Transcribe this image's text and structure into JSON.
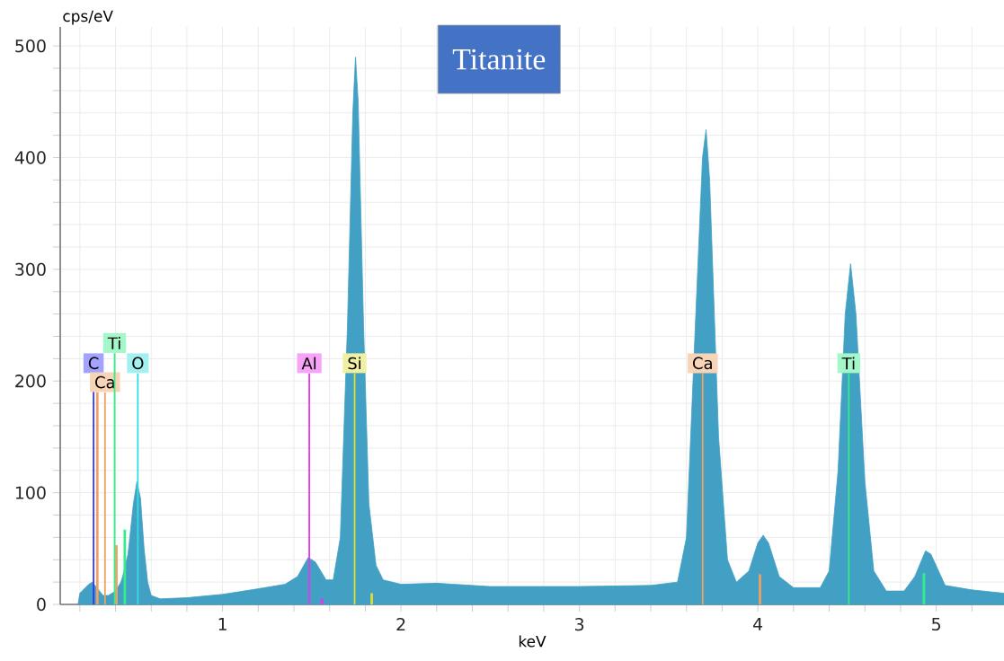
{
  "chart_data": {
    "type": "area",
    "title": "Titanite",
    "xlabel": "keV",
    "ylabel": "cps/eV",
    "x": [
      0.19,
      0.2,
      0.25,
      0.27,
      0.3,
      0.33,
      0.36,
      0.4,
      0.43,
      0.44,
      0.47,
      0.5,
      0.52,
      0.54,
      0.56,
      0.58,
      0.6,
      0.65,
      0.8,
      1.0,
      1.2,
      1.35,
      1.42,
      1.48,
      1.52,
      1.58,
      1.62,
      1.66,
      1.7,
      1.73,
      1.745,
      1.76,
      1.79,
      1.82,
      1.86,
      1.9,
      2.0,
      2.2,
      2.5,
      3.0,
      3.4,
      3.55,
      3.6,
      3.65,
      3.69,
      3.71,
      3.73,
      3.78,
      3.83,
      3.88,
      3.95,
      4.0,
      4.03,
      4.06,
      4.12,
      4.2,
      4.35,
      4.4,
      4.45,
      4.49,
      4.52,
      4.55,
      4.6,
      4.65,
      4.72,
      4.82,
      4.88,
      4.94,
      4.97,
      5.05,
      5.2,
      5.38
    ],
    "series": [
      {
        "type": "bar",
        "x": [
          0.298,
          0.405,
          0.452,
          1.557,
          1.836,
          4.012,
          4.931
        ],
        "values": [
          190,
          53,
          67,
          5,
          10,
          27,
          28
        ],
        "colors": [
          "#f0a060",
          "#f0a060",
          "#33ee88",
          "#ee33ee",
          "#dddd33",
          "#f0a060",
          "#33ee88"
        ]
      },
      {
        "color": "#42a0c4",
        "values": [
          0,
          10,
          18,
          20,
          14,
          8,
          8,
          12,
          20,
          25,
          45,
          90,
          110,
          95,
          50,
          20,
          8,
          5,
          6,
          9,
          14,
          18,
          25,
          42,
          38,
          22,
          22,
          60,
          250,
          440,
          490,
          450,
          250,
          90,
          35,
          22,
          18,
          19,
          16,
          16,
          17,
          20,
          60,
          250,
          400,
          425,
          380,
          150,
          40,
          20,
          30,
          55,
          62,
          55,
          25,
          15,
          15,
          30,
          120,
          260,
          305,
          260,
          110,
          30,
          12,
          12,
          25,
          48,
          45,
          17,
          13,
          10
        ]
      }
    ],
    "xlim": [
      0.09,
      5.38
    ],
    "ylim": [
      0,
      517
    ],
    "xticks": [
      {
        "value": 0.2,
        "label": null
      },
      {
        "value": 0.4,
        "label": null
      },
      {
        "value": 0.6,
        "label": null
      },
      {
        "value": 0.8,
        "label": null
      },
      1,
      {
        "value": 1.2,
        "label": null
      },
      {
        "value": 1.4,
        "label": null
      },
      {
        "value": 1.6,
        "label": null
      },
      {
        "value": 1.8,
        "label": null
      },
      2,
      {
        "value": 2.2,
        "label": null
      },
      {
        "value": 2.4,
        "label": null
      },
      {
        "value": 2.6,
        "label": null
      },
      {
        "value": 2.8,
        "label": null
      },
      3,
      {
        "value": 3.2,
        "label": null
      },
      {
        "value": 3.4,
        "label": null
      },
      {
        "value": 3.6,
        "label": null
      },
      {
        "value": 3.8,
        "label": null
      },
      4,
      {
        "value": 4.2,
        "label": null
      },
      {
        "value": 4.4,
        "label": null
      },
      {
        "value": 4.6,
        "label": null
      },
      {
        "value": 4.8,
        "label": null
      },
      5,
      {
        "value": 5.2,
        "label": null
      }
    ],
    "yticks": [
      0,
      {
        "value": 20,
        "label": null
      },
      {
        "value": 40,
        "label": null
      },
      {
        "value": 60,
        "label": null
      },
      {
        "value": 80,
        "label": null
      },
      100,
      {
        "value": 120,
        "label": null
      },
      {
        "value": 140,
        "label": null
      },
      {
        "value": 160,
        "label": null
      },
      {
        "value": 180,
        "label": null
      },
      200,
      {
        "value": 220,
        "label": null
      },
      {
        "value": 240,
        "label": null
      },
      {
        "value": 260,
        "label": null
      },
      {
        "value": 280,
        "label": null
      },
      300,
      {
        "value": 320,
        "label": null
      },
      {
        "value": 340,
        "label": null
      },
      {
        "value": 360,
        "label": null
      },
      {
        "value": 380,
        "label": null
      },
      400,
      {
        "value": 420,
        "label": null
      },
      {
        "value": 440,
        "label": null
      },
      {
        "value": 460,
        "label": null
      },
      {
        "value": 480,
        "label": null
      },
      500
    ],
    "grid": true,
    "ref_lines": [
      {
        "axis": "x",
        "value": 0.277,
        "label": "C",
        "color": "#3333ff"
      },
      {
        "axis": "x",
        "value": 0.341,
        "label": "Ca",
        "color": "#f0a060"
      },
      {
        "axis": "x",
        "value": 0.395,
        "label": "Ti",
        "color": "#33ee88"
      },
      {
        "axis": "x",
        "value": 0.525,
        "label": "O",
        "color": "#33dddd"
      },
      {
        "axis": "x",
        "value": 1.486,
        "label": "Al",
        "color": "#ee33ee"
      },
      {
        "axis": "x",
        "value": 1.74,
        "label": "Si",
        "color": "#dddd33"
      },
      {
        "axis": "x",
        "value": 3.691,
        "label": "Ca",
        "color": "#f0a060"
      },
      {
        "axis": "x",
        "value": 4.51,
        "label": "Ti",
        "color": "#33ee88"
      }
    ]
  }
}
